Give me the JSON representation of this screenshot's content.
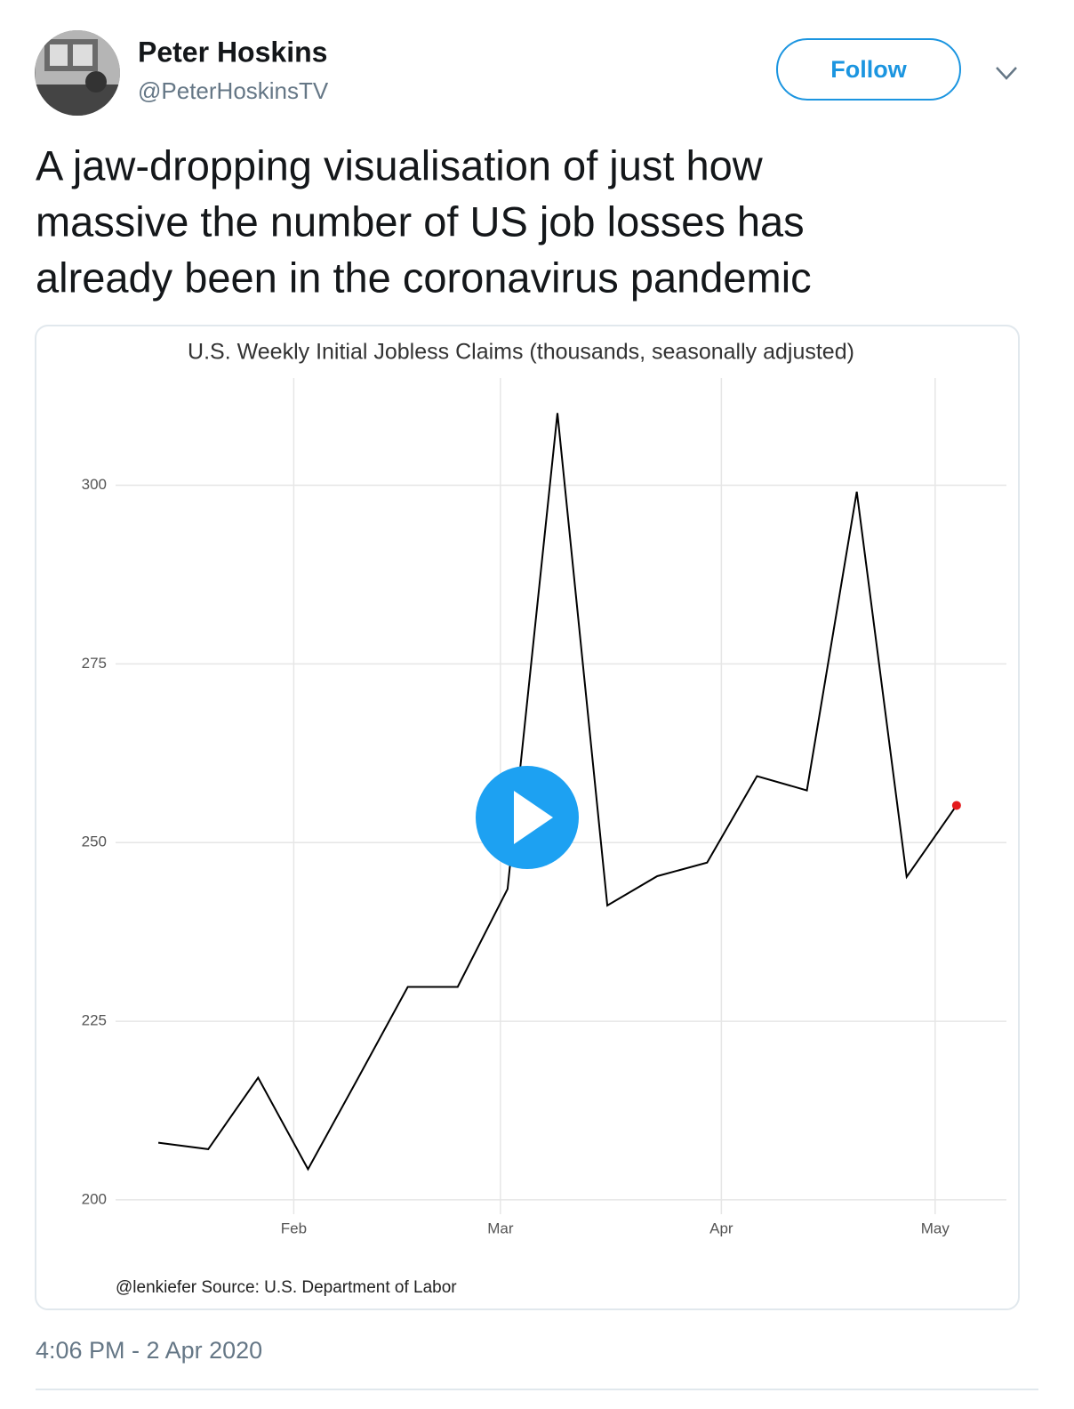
{
  "tweet": {
    "name": "Peter Hoskins",
    "handle": "@PeterHoskinsTV",
    "button": "Follow",
    "text_lines": [
      "A jaw-dropping visualisation of just how",
      "massive the number of US job losses has",
      "already been in the coronavirus pandemic"
    ],
    "timestamp": "4:06 PM - 2 Apr 2020"
  },
  "chart_data": {
    "type": "line",
    "title": "U.S. Weekly Initial Jobless Claims (thousands, seasonally adjusted)",
    "source": "@lenkiefer Source: U.S. Department of Labor",
    "x": [
      13,
      20,
      27,
      34,
      41,
      48,
      55,
      62,
      69,
      76,
      83,
      90,
      97,
      104,
      111,
      118,
      125
    ],
    "values": [
      208,
      207.1,
      217.1,
      204.3,
      217,
      229.8,
      229.8,
      243.5,
      310.1,
      241.2,
      245.3,
      247.2,
      259.3,
      257.3,
      299.1,
      245.2,
      255.2
    ],
    "color": "#000000",
    "end_marker_color": "#e41a1c",
    "xlim": [
      7,
      132
    ],
    "xticks": [
      {
        "value": 32,
        "label": "Feb"
      },
      {
        "value": 61,
        "label": "Mar"
      },
      {
        "value": 92,
        "label": "Apr"
      },
      {
        "value": 122,
        "label": "May"
      }
    ],
    "ylim": [
      198,
      315
    ],
    "yticks": [
      200,
      225,
      250,
      275,
      300
    ],
    "grid": true
  }
}
